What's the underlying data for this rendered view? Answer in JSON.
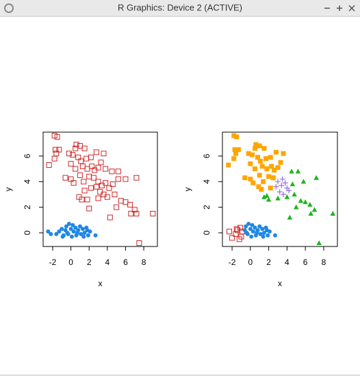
{
  "window": {
    "title": "R Graphics: Device 2 (ACTIVE)"
  },
  "chart_data": [
    {
      "type": "scatter",
      "x_label": "x",
      "y_label": "y",
      "xlim": [
        -3.05,
        9.5
      ],
      "ylim": [
        -1.07,
        7.87
      ],
      "xticks": [
        -2,
        0,
        2,
        4,
        6,
        8
      ],
      "yticks": [
        0,
        2,
        4,
        6
      ],
      "series": [
        {
          "color": "#cd2626",
          "marker": "square-open",
          "x": [
            -1.8,
            -1.5,
            -1.7,
            -1.6,
            -1.3,
            -2.4,
            -1.8,
            -0.2,
            0.6,
            0.5,
            1.0,
            1.5,
            0.2,
            0.8,
            1.1,
            1.7,
            2.2,
            2.8,
            3.6,
            3.3,
            0,
            0.5,
            1.3,
            1.8,
            2.3,
            2.6,
            3.0,
            3.8,
            4.5,
            5.2,
            -0.6,
            0,
            0.3,
            1,
            1.4,
            2,
            2.5,
            3,
            3.4,
            3.8,
            4.2,
            4.6,
            2.8,
            2.2,
            1.5,
            3.2,
            3.6,
            4.0,
            4.8,
            5.5,
            6,
            6.5,
            7.0,
            6.6,
            7.2,
            9,
            7.2,
            5,
            4.3,
            2,
            1.2,
            1.8,
            0.9,
            3,
            7.5,
            6,
            5.2
          ],
          "values": [
            7.6,
            7.5,
            6.5,
            6.2,
            6.5,
            5.3,
            5.8,
            6.2,
            6.9,
            6.6,
            6.8,
            6.6,
            6.1,
            5.9,
            5.6,
            5.8,
            5.9,
            6.3,
            6.2,
            5.5,
            5.4,
            5.0,
            5.2,
            5.0,
            5.2,
            4.9,
            5.1,
            5.0,
            4.8,
            4.8,
            4.3,
            4.2,
            3.9,
            4.5,
            4.0,
            4.4,
            4.3,
            4.0,
            3.7,
            3.9,
            3.5,
            3.8,
            3.6,
            3.5,
            3.3,
            3.2,
            3.0,
            2.8,
            3.0,
            2.5,
            2.4,
            2.2,
            1.8,
            1.5,
            1.5,
            1.5,
            4.3,
            2.0,
            1.2,
            1.9,
            2.6,
            2.6,
            2.8,
            2.7,
            -0.8,
            4.2,
            4.2
          ]
        },
        {
          "color": "#1e88e5",
          "marker": "circle",
          "x": [
            -2.5,
            -2.2,
            -1.6,
            -1.3,
            -1.0,
            -0.8,
            -0.6,
            -0.5,
            -0.3,
            -0.2,
            0,
            0.1,
            0.3,
            0.5,
            0.6,
            0.8,
            1.0,
            1.1,
            1.3,
            1.5,
            1.7,
            1.9,
            2.1,
            2.7,
            -0.9,
            0.2,
            0.7,
            1.4,
            -0.4,
            1.8
          ],
          "values": [
            0.1,
            -0.1,
            -0.1,
            0.1,
            0.3,
            -0.2,
            0.2,
            0.5,
            -0.1,
            0.7,
            0.3,
            -0.3,
            0.1,
            0.4,
            -0.2,
            0.2,
            0.5,
            -0.1,
            0.3,
            0.0,
            0.4,
            -0.2,
            0.1,
            -0.2,
            -0.3,
            0.6,
            0.0,
            -0.3,
            0.0,
            0.2
          ]
        }
      ]
    },
    {
      "type": "scatter",
      "x_label": "x",
      "y_label": "y",
      "xlim": [
        -3.05,
        9.5
      ],
      "ylim": [
        -1.07,
        7.87
      ],
      "xticks": [
        -2,
        0,
        2,
        4,
        6,
        8
      ],
      "yticks": [
        0,
        2,
        4,
        6
      ],
      "series": [
        {
          "color": "#cd2626",
          "marker": "square-open",
          "x": [
            -2.3,
            -2.0,
            -1.6,
            -1.4,
            -1.1,
            -1.0,
            -1.2,
            -0.9,
            -1.5
          ],
          "values": [
            0.1,
            -0.4,
            -0.1,
            0.2,
            0.4,
            -0.3,
            -0.5,
            0.1,
            0.3
          ]
        },
        {
          "color": "#1e88e5",
          "marker": "circle",
          "x": [
            -0.6,
            -0.5,
            -0.3,
            -0.2,
            0,
            0.1,
            0.3,
            0.5,
            0.6,
            0.8,
            1.0,
            1.1,
            1.3,
            1.5,
            1.7,
            1.9,
            2.1,
            2.7,
            0.2,
            0.7,
            1.4,
            -0.4,
            1.8
          ],
          "values": [
            0.2,
            0.5,
            -0.1,
            0.7,
            0.3,
            -0.3,
            0.1,
            0.4,
            -0.2,
            0.2,
            0.5,
            -0.1,
            0.3,
            0.0,
            0.4,
            -0.2,
            0.1,
            -0.2,
            0.6,
            0.0,
            -0.3,
            0.0,
            0.2
          ]
        },
        {
          "color": "#ffa500",
          "marker": "square",
          "x": [
            -1.8,
            -1.5,
            -1.7,
            -1.6,
            -1.3,
            -2.4,
            -1.8,
            -0.2,
            0.6,
            0.5,
            1.0,
            1.5,
            0.2,
            0.8,
            1.1,
            1.7,
            2.2,
            2.8,
            3.6,
            3.3,
            0,
            0.5,
            1.3,
            1.8,
            2.3,
            2.6,
            3.0,
            -0.6,
            0,
            0.3,
            1,
            1.4,
            2,
            2.5,
            2.2,
            1.2,
            0.9
          ],
          "values": [
            7.6,
            7.5,
            6.5,
            6.2,
            6.5,
            5.3,
            5.8,
            6.2,
            6.9,
            6.6,
            6.8,
            6.6,
            6.1,
            5.9,
            5.6,
            5.8,
            5.9,
            6.3,
            6.2,
            5.5,
            5.4,
            5.0,
            5.2,
            5.0,
            5.2,
            4.9,
            5.1,
            4.3,
            4.2,
            3.9,
            4.5,
            4.0,
            4.4,
            4.3,
            3.5,
            3.4,
            3.6
          ]
        },
        {
          "color": "#9370db",
          "marker": "plus",
          "x": [
            2.8,
            3.0,
            3.4,
            3.8,
            3.2,
            3.6,
            4.0,
            3.5,
            4.2
          ],
          "values": [
            3.6,
            4.0,
            3.7,
            3.9,
            3.2,
            3.0,
            3.5,
            4.2,
            3.3
          ]
        },
        {
          "color": "#1fb51f",
          "marker": "triangle",
          "x": [
            4.5,
            5.2,
            4.6,
            4.8,
            5.5,
            6,
            6.5,
            7,
            6.6,
            9,
            7.2,
            5,
            4.3,
            7.5,
            2,
            1.5,
            1.8,
            3,
            4,
            5.8
          ],
          "values": [
            4.8,
            4.8,
            3.8,
            3.0,
            2.5,
            2.4,
            2.2,
            1.8,
            1.5,
            1.5,
            4.3,
            2.0,
            1.2,
            -0.8,
            2.6,
            2.8,
            2.9,
            2.7,
            2.8,
            4.0
          ]
        }
      ]
    }
  ]
}
